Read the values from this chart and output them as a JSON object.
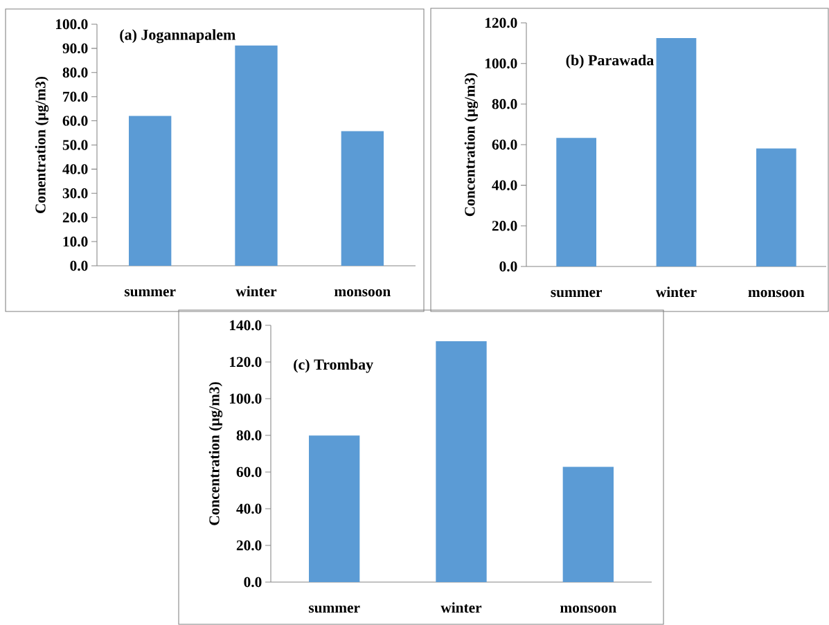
{
  "chart_data": [
    {
      "type": "bar",
      "title": "(a) Jogannapalem",
      "ylabel": "Conentration (µg/m3)",
      "categories": [
        "summer",
        "winter",
        "monsoon"
      ],
      "values": [
        62.0,
        91.2,
        55.7
      ],
      "color": "#5b9bd5",
      "ylim": [
        0,
        100
      ],
      "yticks": [
        {
          "value": 0,
          "label": "0.0"
        },
        {
          "value": 10,
          "label": "10.0"
        },
        {
          "value": 20,
          "label": "20.0"
        },
        {
          "value": 30,
          "label": "30.0"
        },
        {
          "value": 40,
          "label": "40.0"
        },
        {
          "value": 50,
          "label": "50.0"
        },
        {
          "value": 60,
          "label": "60.0"
        },
        {
          "value": 70,
          "label": "70.0"
        },
        {
          "value": 80,
          "label": "80.0"
        },
        {
          "value": 90,
          "label": "90.0"
        },
        {
          "value": 100,
          "label": "100.0"
        }
      ]
    },
    {
      "type": "bar",
      "title": "(b) Parawada",
      "ylabel": "Concentration (µg/m3)",
      "categories": [
        "summer",
        "winter",
        "monsoon"
      ],
      "values": [
        63.3,
        112.5,
        58.1
      ],
      "color": "#5b9bd5",
      "ylim": [
        0,
        120
      ],
      "yticks": [
        {
          "value": 0,
          "label": "0.0"
        },
        {
          "value": 20,
          "label": "20.0"
        },
        {
          "value": 40,
          "label": "40.0"
        },
        {
          "value": 60,
          "label": "60.0"
        },
        {
          "value": 80,
          "label": "80.0"
        },
        {
          "value": 100,
          "label": "100.0"
        },
        {
          "value": 120,
          "label": "120.0"
        }
      ]
    },
    {
      "type": "bar",
      "title": "(c) Trombay",
      "ylabel": "Concentration (µg/m3)",
      "categories": [
        "summer",
        "winter",
        "monsoon"
      ],
      "values": [
        79.9,
        131.3,
        62.8
      ],
      "color": "#5b9bd5",
      "ylim": [
        0,
        140
      ],
      "yticks": [
        {
          "value": 0,
          "label": "0.0"
        },
        {
          "value": 20,
          "label": "20.0"
        },
        {
          "value": 40,
          "label": "40.0"
        },
        {
          "value": 60,
          "label": "60.0"
        },
        {
          "value": 80,
          "label": "80.0"
        },
        {
          "value": 100,
          "label": "100.0"
        },
        {
          "value": 120,
          "label": "120.0"
        },
        {
          "value": 140,
          "label": "140.0"
        }
      ]
    }
  ]
}
